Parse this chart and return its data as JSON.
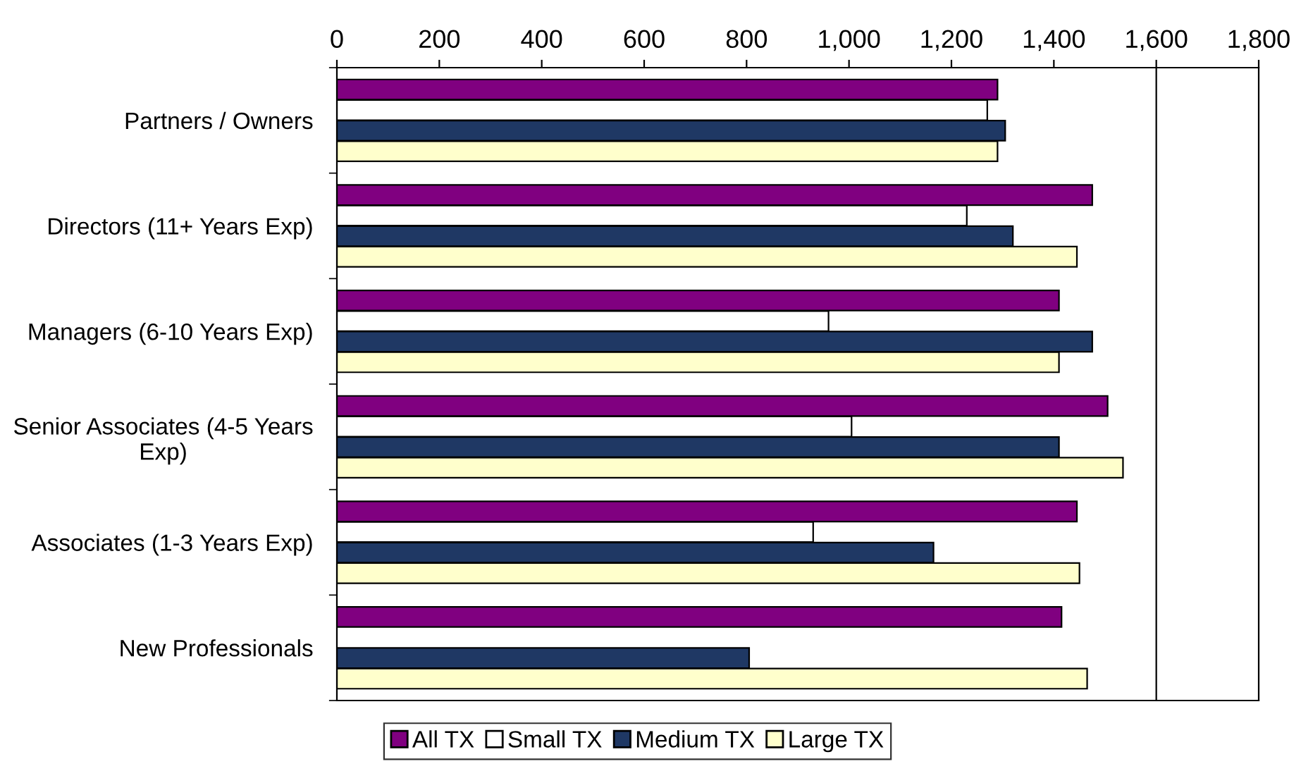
{
  "chart_data": {
    "type": "bar",
    "orientation": "horizontal",
    "categories": [
      "Partners / Owners",
      "Directors (11+ Years Exp)",
      "Managers (6-10 Years Exp)",
      "Senior Associates (4-5 Years Exp)",
      "Associates (1-3 Years Exp)",
      "New Professionals"
    ],
    "series": [
      {
        "name": "All TX",
        "color": "#800080",
        "values": [
          1290,
          1475,
          1410,
          1505,
          1445,
          1415
        ]
      },
      {
        "name": "Small TX",
        "color": "#ffffff",
        "values": [
          1270,
          1230,
          960,
          1005,
          930,
          null
        ]
      },
      {
        "name": "Medium TX",
        "color": "#1f3864",
        "values": [
          1305,
          1320,
          1475,
          1410,
          1165,
          805
        ]
      },
      {
        "name": "Large TX",
        "color": "#ffffcc",
        "values": [
          1290,
          1445,
          1410,
          1535,
          1450,
          1465
        ]
      }
    ],
    "xlim": [
      0,
      1800
    ],
    "xticks": [
      0,
      {
        "value": 200,
        "label": "200"
      },
      {
        "value": 400,
        "label": "400"
      },
      {
        "value": 600,
        "label": "600"
      },
      {
        "value": 800,
        "label": "800"
      },
      {
        "value": 1000,
        "label": "1,000"
      },
      {
        "value": 1200,
        "label": "1,200"
      },
      {
        "value": 1400,
        "label": "1,400"
      },
      {
        "value": 1600,
        "label": "1,600"
      },
      {
        "value": 1800,
        "label": "1,800"
      }
    ],
    "ref_lines": [
      {
        "axis": "x",
        "value": 1600,
        "color": "#000000"
      }
    ],
    "grid": false,
    "legend": "bottom"
  }
}
